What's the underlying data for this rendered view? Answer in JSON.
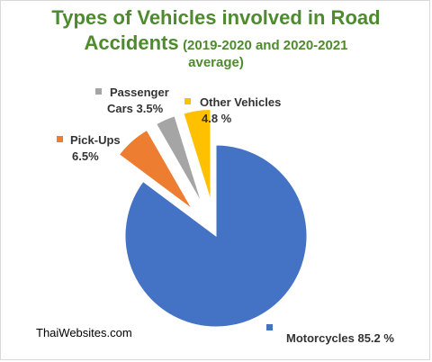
{
  "title_line1": "Types of Vehicles involved in Road",
  "title_line2_main": "Accidents",
  "title_line2_sub": "(2019-2020 and 2020-2021",
  "title_line3": "average)",
  "source": "ThaiWebsites.com",
  "chart_data": {
    "type": "pie",
    "title": "Types of Vehicles involved in Road Accidents (2019-2020 and 2020-2021 average)",
    "slices": [
      {
        "label_lines": [
          "Motorcycles 85.2 %"
        ],
        "value": 85.2,
        "color": "#4472c4"
      },
      {
        "label_lines": [
          "Pick-Ups",
          "6.5%"
        ],
        "value": 6.5,
        "color": "#ed7d31"
      },
      {
        "label_lines": [
          "Passenger",
          "Cars 3.5%"
        ],
        "value": 3.5,
        "color": "#a5a5a5"
      },
      {
        "label_lines": [
          "Other Vehicles",
          "4.8 %"
        ],
        "value": 4.8,
        "color": "#ffc000"
      }
    ]
  }
}
